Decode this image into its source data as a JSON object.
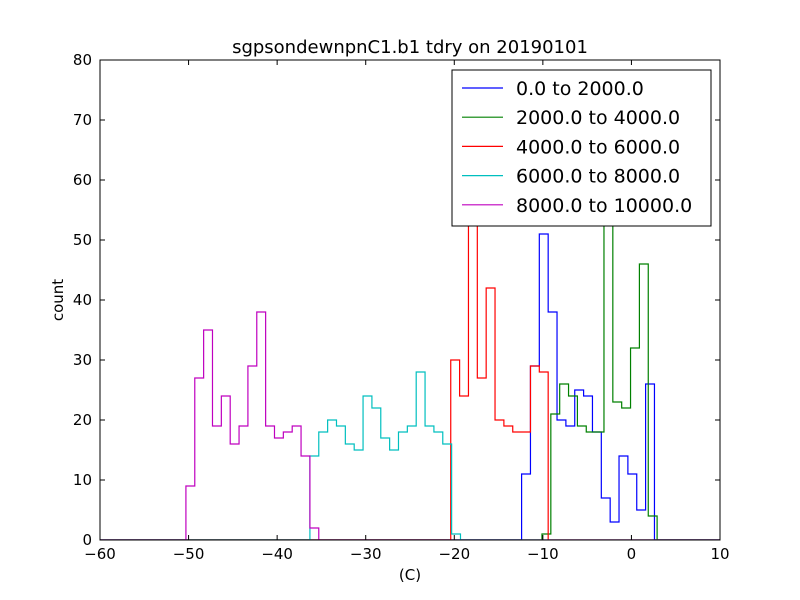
{
  "chart_data": {
    "type": "step-histogram",
    "title": "sgpsondewnpnC1.b1 tdry on 20190101",
    "xlabel": "(C)",
    "ylabel": "count",
    "xlim": [
      -60,
      10
    ],
    "ylim": [
      0,
      80
    ],
    "xticks": [
      "−60",
      "−50",
      "−40",
      "−30",
      "−20",
      "−10",
      "0",
      "10"
    ],
    "xtick_values": [
      -60,
      -50,
      -40,
      -30,
      -20,
      -10,
      0,
      10
    ],
    "yticks": [
      "0",
      "10",
      "20",
      "30",
      "40",
      "50",
      "60",
      "70",
      "80"
    ],
    "ytick_values": [
      0,
      10,
      20,
      30,
      40,
      50,
      60,
      70,
      80
    ],
    "legend_position": "upper right",
    "bin_width": 1.0,
    "series": [
      {
        "name": "0.0 to 2000.0",
        "color": "#0000ff",
        "x": [
          -12.4,
          -11.4,
          -10.4,
          -9.4,
          -8.4,
          -7.4,
          -6.4,
          -5.4,
          -4.4,
          -3.4,
          -2.4,
          -1.4,
          -0.4,
          0.6,
          1.6,
          2.6
        ],
        "values": [
          11,
          29,
          51,
          38,
          20,
          19,
          25,
          24,
          18,
          7,
          3,
          14,
          11,
          5,
          26
        ]
      },
      {
        "name": "2000.0 to 4000.0",
        "color": "#008000",
        "x": [
          -10.1,
          -9.1,
          -8.1,
          -7.1,
          -6.1,
          -5.1,
          -4.1,
          -3.1,
          -2.1,
          -1.1,
          -0.1,
          0.9,
          1.9,
          2.9
        ],
        "values": [
          1,
          21,
          26,
          24,
          19,
          18,
          18,
          57,
          23,
          22,
          32,
          46,
          4
        ]
      },
      {
        "name": "4000.0 to 6000.0",
        "color": "#ff0000",
        "x": [
          -20.4,
          -19.4,
          -18.4,
          -17.4,
          -16.4,
          -15.4,
          -14.4,
          -13.4,
          -12.4,
          -11.4,
          -10.4,
          -9.4
        ],
        "values": [
          30,
          24,
          62,
          27,
          42,
          20,
          19,
          18,
          18,
          29,
          28
        ]
      },
      {
        "name": "6000.0 to 8000.0",
        "color": "#00bfbf",
        "x": [
          -36.3,
          -35.3,
          -34.3,
          -33.3,
          -32.3,
          -31.3,
          -30.3,
          -29.3,
          -28.3,
          -27.3,
          -26.3,
          -25.3,
          -24.3,
          -23.3,
          -22.3,
          -21.3,
          -20.3,
          -19.3
        ],
        "values": [
          14,
          18,
          20,
          19,
          16,
          15,
          24,
          22,
          17,
          15,
          18,
          19,
          28,
          19,
          18,
          16,
          1
        ]
      },
      {
        "name": "8000.0 to 10000.0",
        "color": "#bf00bf",
        "x": [
          -50.3,
          -49.3,
          -48.3,
          -47.3,
          -46.3,
          -45.3,
          -44.3,
          -43.3,
          -42.3,
          -41.3,
          -40.3,
          -39.3,
          -38.3,
          -37.3,
          -36.3,
          -35.3
        ],
        "values": [
          9,
          27,
          35,
          19,
          24,
          16,
          19,
          29,
          38,
          19,
          17,
          18,
          19,
          14,
          2
        ]
      }
    ]
  }
}
